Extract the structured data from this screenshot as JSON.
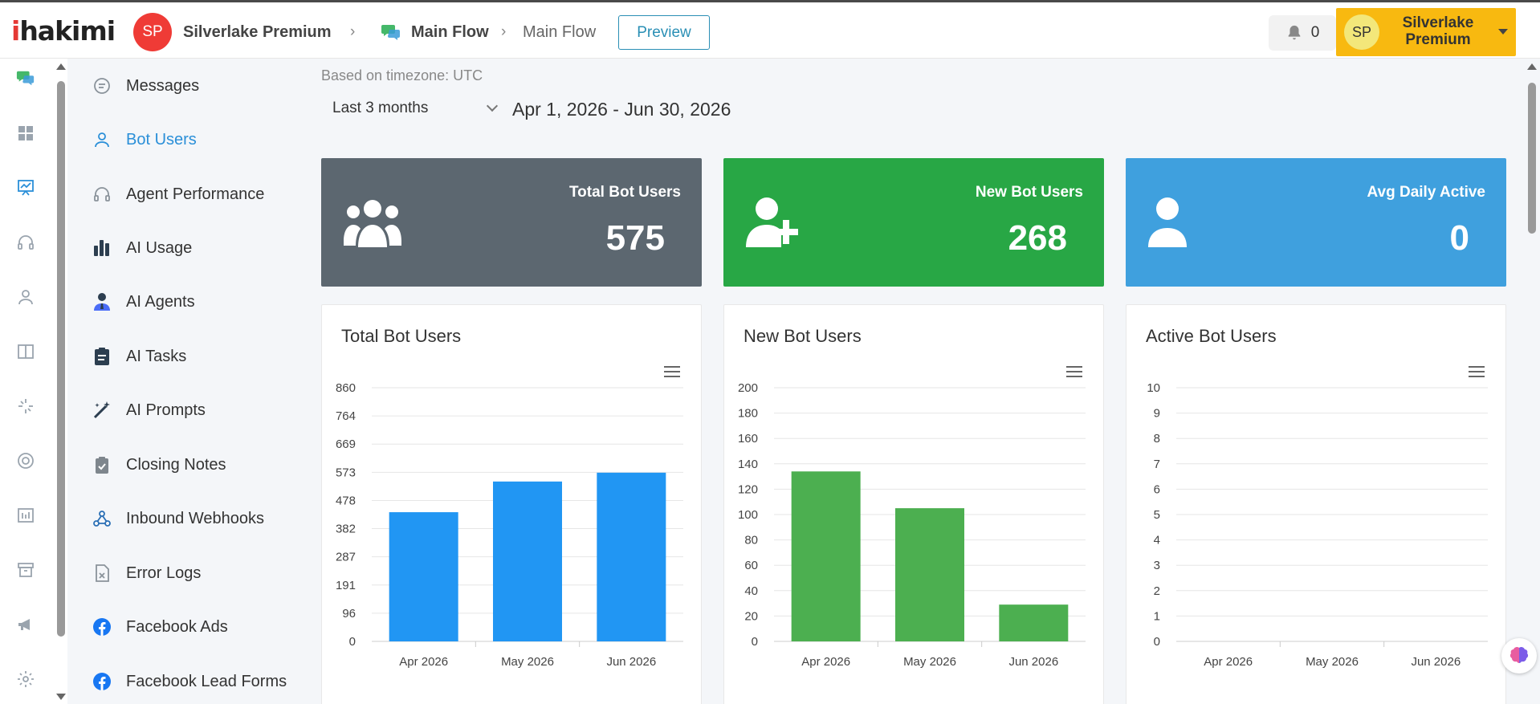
{
  "header": {
    "logo_prefix": "i",
    "logo_rest": "hakimi",
    "account_initials": "SP",
    "account_name": "Silverlake Premium",
    "breadcrumb_1": "Main Flow",
    "breadcrumb_2": "Main Flow",
    "preview_label": "Preview",
    "notification_count": "0",
    "user_initials": "SP",
    "user_name": "Silverlake Premium"
  },
  "rail_icons": [
    "chat-bubbles-icon",
    "dashboard-icon",
    "analytics-icon",
    "headset-icon",
    "user-icon",
    "columns-icon",
    "sparkle-icon",
    "lifebuoy-icon",
    "report-icon",
    "archive-icon",
    "megaphone-icon",
    "gear-icon"
  ],
  "sidebar": {
    "items": [
      {
        "label": "Messages",
        "icon": "chat-icon"
      },
      {
        "label": "Bot Users",
        "icon": "user-icon"
      },
      {
        "label": "Agent Performance",
        "icon": "headset-icon"
      },
      {
        "label": "AI Usage",
        "icon": "bar-chart-icon"
      },
      {
        "label": "AI Agents",
        "icon": "agent-icon"
      },
      {
        "label": "AI Tasks",
        "icon": "clipboard-icon"
      },
      {
        "label": "AI Prompts",
        "icon": "magic-wand-icon"
      },
      {
        "label": "Closing Notes",
        "icon": "clipboard-check-icon"
      },
      {
        "label": "Inbound Webhooks",
        "icon": "webhook-icon"
      },
      {
        "label": "Error Logs",
        "icon": "error-file-icon"
      },
      {
        "label": "Facebook Ads",
        "icon": "facebook-icon"
      },
      {
        "label": "Facebook Lead Forms",
        "icon": "facebook-icon"
      }
    ],
    "active": "Bot Users"
  },
  "filters": {
    "timezone": "Based on timezone: UTC",
    "range": "Last 3 months",
    "dates": "Apr 1, 2026 - Jun 30, 2026"
  },
  "stats": [
    {
      "label": "Total Bot Users",
      "value": "575",
      "color": "#5c6770",
      "icon": "users-group-icon"
    },
    {
      "label": "New Bot Users",
      "value": "268",
      "color": "#28a745",
      "icon": "user-plus-icon"
    },
    {
      "label": "Avg Daily Active",
      "value": "0",
      "color": "#3fa0de",
      "icon": "single-user-icon"
    }
  ],
  "chart_data": [
    {
      "type": "bar",
      "title": "Total Bot Users",
      "categories": [
        "Apr 2026",
        "May 2026",
        "Jun 2026"
      ],
      "values": [
        438,
        542,
        572
      ],
      "yticks": [
        "0",
        "96",
        "191",
        "287",
        "382",
        "478",
        "573",
        "669",
        "764",
        "860"
      ],
      "ylim": [
        0,
        860
      ],
      "color": "#2196f3"
    },
    {
      "type": "bar",
      "title": "New Bot Users",
      "categories": [
        "Apr 2026",
        "May 2026",
        "Jun 2026"
      ],
      "values": [
        134,
        105,
        29
      ],
      "yticks": [
        "0",
        "20",
        "40",
        "60",
        "80",
        "100",
        "120",
        "140",
        "160",
        "180",
        "200"
      ],
      "ylim": [
        0,
        200
      ],
      "color": "#4caf50"
    },
    {
      "type": "bar",
      "title": "Active Bot Users",
      "categories": [
        "Apr 2026",
        "May 2026",
        "Jun 2026"
      ],
      "values": [
        0,
        0,
        0
      ],
      "yticks": [
        "0",
        "1",
        "2",
        "3",
        "4",
        "5",
        "6",
        "7",
        "8",
        "9",
        "10"
      ],
      "ylim": [
        0,
        10
      ],
      "color": "#3fa0de"
    }
  ]
}
